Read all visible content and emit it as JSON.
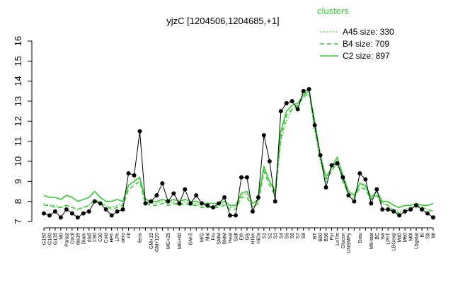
{
  "chart_data": {
    "type": "line",
    "title": "yjzC [1204506,1204685,+1]",
    "categories": [
      "G150",
      "G180",
      "G135",
      "M0",
      "Pariaz",
      "Oxctl",
      "dia15",
      "Diam",
      "dia5",
      "C90",
      "C30",
      "Cold",
      "HPh",
      "LPh",
      "aero",
      "nit",
      null,
      "ferm",
      null,
      "GM+15",
      "GM+120",
      null,
      "MG+25",
      null,
      "MG+60",
      null,
      "GM-5",
      null,
      "M/G",
      "Mal",
      "Fru",
      "SMM",
      "BMM",
      "Heat",
      "Salt",
      "Eth",
      "Gly",
      "HTim",
      "HiOs",
      "S1",
      "S2",
      "S3",
      "S4",
      "S5",
      "S6",
      "S7",
      "S8",
      null,
      "BT",
      "B60",
      "B36",
      "Pyr",
      "LoTm",
      "Glucon",
      "UNSMPy",
      null,
      "Diau",
      null,
      "M9-stat",
      "BC",
      "Sw",
      "LPhT",
      "LBGexp",
      "M40",
      "M60",
      "M0t",
      "Lbgstat",
      "BI",
      "Sb",
      "Mt"
    ],
    "values": [
      7.4,
      7.3,
      7.5,
      7.2,
      7.6,
      7.4,
      7.2,
      7.4,
      7.5,
      8.0,
      7.9,
      7.6,
      7.3,
      7.5,
      7.6,
      9.4,
      9.3,
      11.5,
      7.9,
      8.0,
      8.3,
      8.9,
      8.0,
      8.4,
      7.9,
      8.6,
      7.9,
      8.3,
      7.9,
      7.8,
      7.7,
      7.9,
      8.2,
      7.3,
      7.3,
      9.2,
      9.2,
      7.5,
      8.2,
      11.3,
      10.0,
      8.0,
      12.5,
      12.9,
      13.0,
      12.6,
      13.5,
      13.6,
      11.8,
      10.3,
      8.7,
      9.8,
      9.9,
      9.2,
      8.3,
      8.0,
      9.4,
      9.1,
      7.9,
      8.6,
      7.6,
      7.6,
      7.5,
      7.3,
      7.5,
      7.6,
      7.8,
      7.6,
      7.4,
      7.2
    ],
    "color": "#000000",
    "legend_title": "clusters",
    "legend": "top-right",
    "series": [
      {
        "name": "A45 size: 330",
        "color": "#33cc33",
        "style": "dotted",
        "values": [
          7.9,
          7.8,
          7.8,
          7.7,
          7.8,
          7.7,
          7.6,
          7.7,
          7.8,
          8.1,
          7.9,
          7.8,
          7.7,
          7.8,
          7.9,
          8.8,
          9.0,
          9.2,
          7.9,
          7.9,
          7.9,
          8.0,
          7.9,
          8.0,
          7.8,
          8.0,
          7.8,
          7.9,
          7.8,
          7.8,
          7.7,
          7.8,
          7.9,
          7.7,
          7.7,
          8.3,
          8.4,
          7.7,
          8.0,
          9.8,
          9.0,
          8.5,
          11.0,
          12.0,
          12.6,
          12.7,
          13.3,
          13.6,
          11.5,
          10.0,
          9.0,
          9.6,
          9.9,
          9.1,
          8.3,
          8.1,
          8.9,
          8.7,
          8.1,
          8.3,
          7.9,
          7.8,
          7.6,
          7.5,
          7.6,
          7.7,
          7.8,
          7.7,
          7.6,
          7.5
        ]
      },
      {
        "name": "B4 size: 709",
        "color": "#33cc33",
        "style": "dashed",
        "values": [
          7.8,
          7.8,
          7.7,
          7.7,
          7.8,
          7.7,
          7.6,
          7.7,
          7.8,
          8.1,
          7.9,
          7.8,
          7.6,
          7.7,
          7.8,
          8.6,
          8.8,
          9.0,
          7.9,
          7.8,
          7.8,
          7.9,
          7.8,
          7.9,
          7.8,
          7.9,
          7.8,
          7.8,
          7.7,
          7.7,
          7.7,
          7.7,
          7.8,
          7.6,
          7.6,
          8.2,
          8.2,
          7.7,
          7.9,
          9.5,
          8.8,
          8.3,
          11.2,
          12.3,
          12.6,
          12.8,
          13.2,
          13.4,
          11.7,
          10.2,
          9.1,
          9.5,
          10.0,
          9.0,
          8.4,
          8.2,
          8.7,
          8.6,
          8.1,
          8.3,
          7.9,
          7.8,
          7.5,
          7.4,
          7.5,
          7.6,
          7.8,
          7.7,
          7.6,
          7.5
        ]
      },
      {
        "name": "C2 size: 897",
        "color": "#33cc33",
        "style": "solid",
        "values": [
          8.3,
          8.2,
          8.2,
          8.1,
          8.3,
          8.2,
          8.0,
          8.1,
          8.2,
          8.5,
          8.2,
          8.0,
          8.0,
          8.1,
          8.0,
          8.8,
          9.0,
          9.2,
          8.1,
          8.0,
          8.0,
          8.1,
          8.0,
          8.1,
          8.0,
          8.1,
          8.0,
          8.0,
          7.9,
          7.9,
          7.9,
          7.9,
          8.0,
          7.8,
          7.8,
          8.4,
          8.5,
          7.9,
          8.1,
          9.7,
          9.0,
          8.5,
          11.5,
          12.5,
          12.8,
          12.9,
          13.3,
          13.5,
          12.0,
          10.3,
          9.2,
          9.7,
          10.2,
          9.3,
          8.5,
          8.3,
          8.9,
          8.8,
          8.2,
          8.5,
          8.0,
          8.0,
          7.8,
          7.7,
          7.8,
          7.8,
          7.9,
          7.8,
          7.8,
          7.9
        ]
      }
    ],
    "ylim": [
      7,
      16
    ],
    "yticks": [
      7,
      8,
      9,
      10,
      11,
      12,
      13,
      14,
      15,
      16
    ]
  }
}
